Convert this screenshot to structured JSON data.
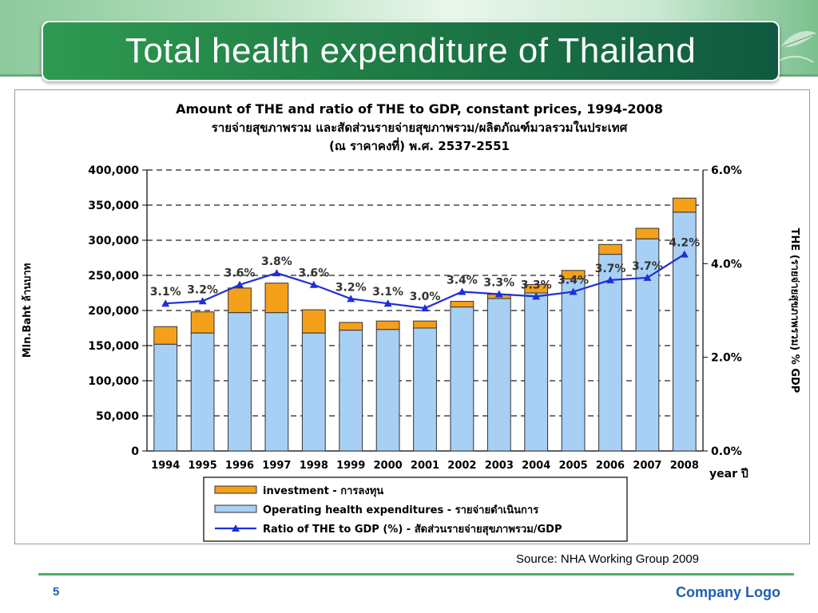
{
  "slide": {
    "title": "Total health expenditure of Thailand",
    "source": "Source: NHA Working Group 2009",
    "page_number": "5",
    "company_logo": "Company Logo"
  },
  "chart_data": {
    "type": "bar",
    "stacked": true,
    "title": "Amount of THE and ratio of THE to GDP, constant prices, 1994-2008",
    "subtitle_lines": [
      "รายจ่ายสุขภาพรวม และสัดส่วนรายจ่ายสุขภาพรวม/ผลิตภัณฑ์มวลรวมในประเทศ",
      "(ณ ราคาคงที่) พ.ศ. 2537-2551"
    ],
    "xlabel": "year ปี",
    "ylabel": "Mln.Baht ล้านบาท",
    "y2label": "THE (รายจ่ายสุขภาพรวม) % GDP",
    "ylim": [
      0,
      400000
    ],
    "y2lim": [
      0,
      6
    ],
    "yticks": [
      "0",
      "50,000",
      "100,000",
      "150,000",
      "200,000",
      "250,000",
      "300,000",
      "350,000",
      "400,000"
    ],
    "y2ticks": [
      "0.0%",
      "2.0%",
      "4.0%",
      "6.0%"
    ],
    "grid": "dashed horizontal",
    "legend_position": "bottom",
    "categories": [
      "1994",
      "1995",
      "1996",
      "1997",
      "1998",
      "1999",
      "2000",
      "2001",
      "2002",
      "2003",
      "2004",
      "2005",
      "2006",
      "2007",
      "2008"
    ],
    "series": [
      {
        "name": "Operating health expenditures - รายจ่ายดำเนินการ",
        "kind": "bar",
        "color": "#a8d0f5",
        "values": [
          152000,
          168000,
          197000,
          197000,
          168000,
          172000,
          173000,
          175000,
          205000,
          217000,
          225000,
          245000,
          280000,
          302000,
          340000
        ]
      },
      {
        "name": "investment - การลงทุน",
        "kind": "bar",
        "color": "#f5a01a",
        "values": [
          25000,
          30000,
          35000,
          42000,
          33000,
          11000,
          12000,
          10000,
          8000,
          6000,
          12000,
          12000,
          14000,
          15000,
          20000
        ]
      },
      {
        "name": "Ratio of THE to GDP (%) - สัดส่วนรายจ่ายสุขภาพรวม/GDP",
        "kind": "line",
        "axis": "right",
        "color": "#1e2fd8",
        "values": [
          3.15,
          3.2,
          3.55,
          3.8,
          3.55,
          3.25,
          3.15,
          3.05,
          3.4,
          3.35,
          3.3,
          3.4,
          3.65,
          3.7,
          4.2
        ],
        "labels": [
          "3.1%",
          "3.2%",
          "3.6%",
          "3.8%",
          "3.6%",
          "3.2%",
          "3.1%",
          "3.0%",
          "3.4%",
          "3.3%",
          "3.3%",
          "3.4%",
          "3.7%",
          "3.7%",
          "4.2%"
        ]
      }
    ]
  }
}
